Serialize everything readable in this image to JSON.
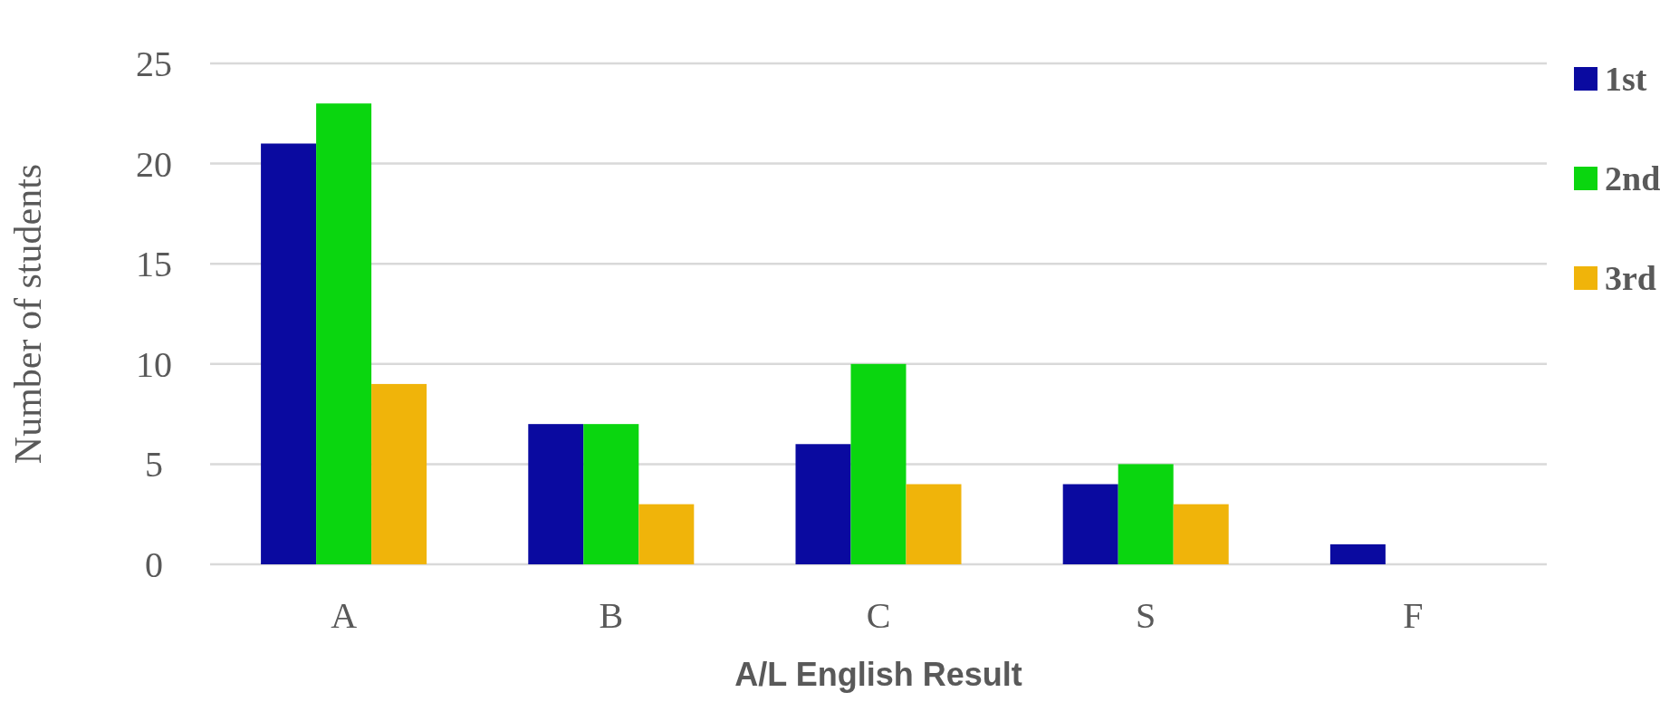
{
  "chart_data": {
    "type": "bar",
    "xlabel": "A/L English Result",
    "ylabel": "Number of students",
    "categories": [
      "A",
      "B",
      "C",
      "S",
      "F"
    ],
    "series": [
      {
        "name": "1st",
        "color": "#0a0aa0",
        "values": [
          21,
          7,
          6,
          4,
          1
        ]
      },
      {
        "name": "2nd",
        "color": "#0ad60f",
        "values": [
          23,
          7,
          10,
          5,
          0
        ]
      },
      {
        "name": "3rd",
        "color": "#f0b40a",
        "values": [
          9,
          3,
          4,
          3,
          0
        ]
      }
    ],
    "ylim": [
      0,
      25
    ],
    "yticks": [
      0,
      5,
      10,
      15,
      20,
      25
    ],
    "grid": "y",
    "legend": "right"
  }
}
